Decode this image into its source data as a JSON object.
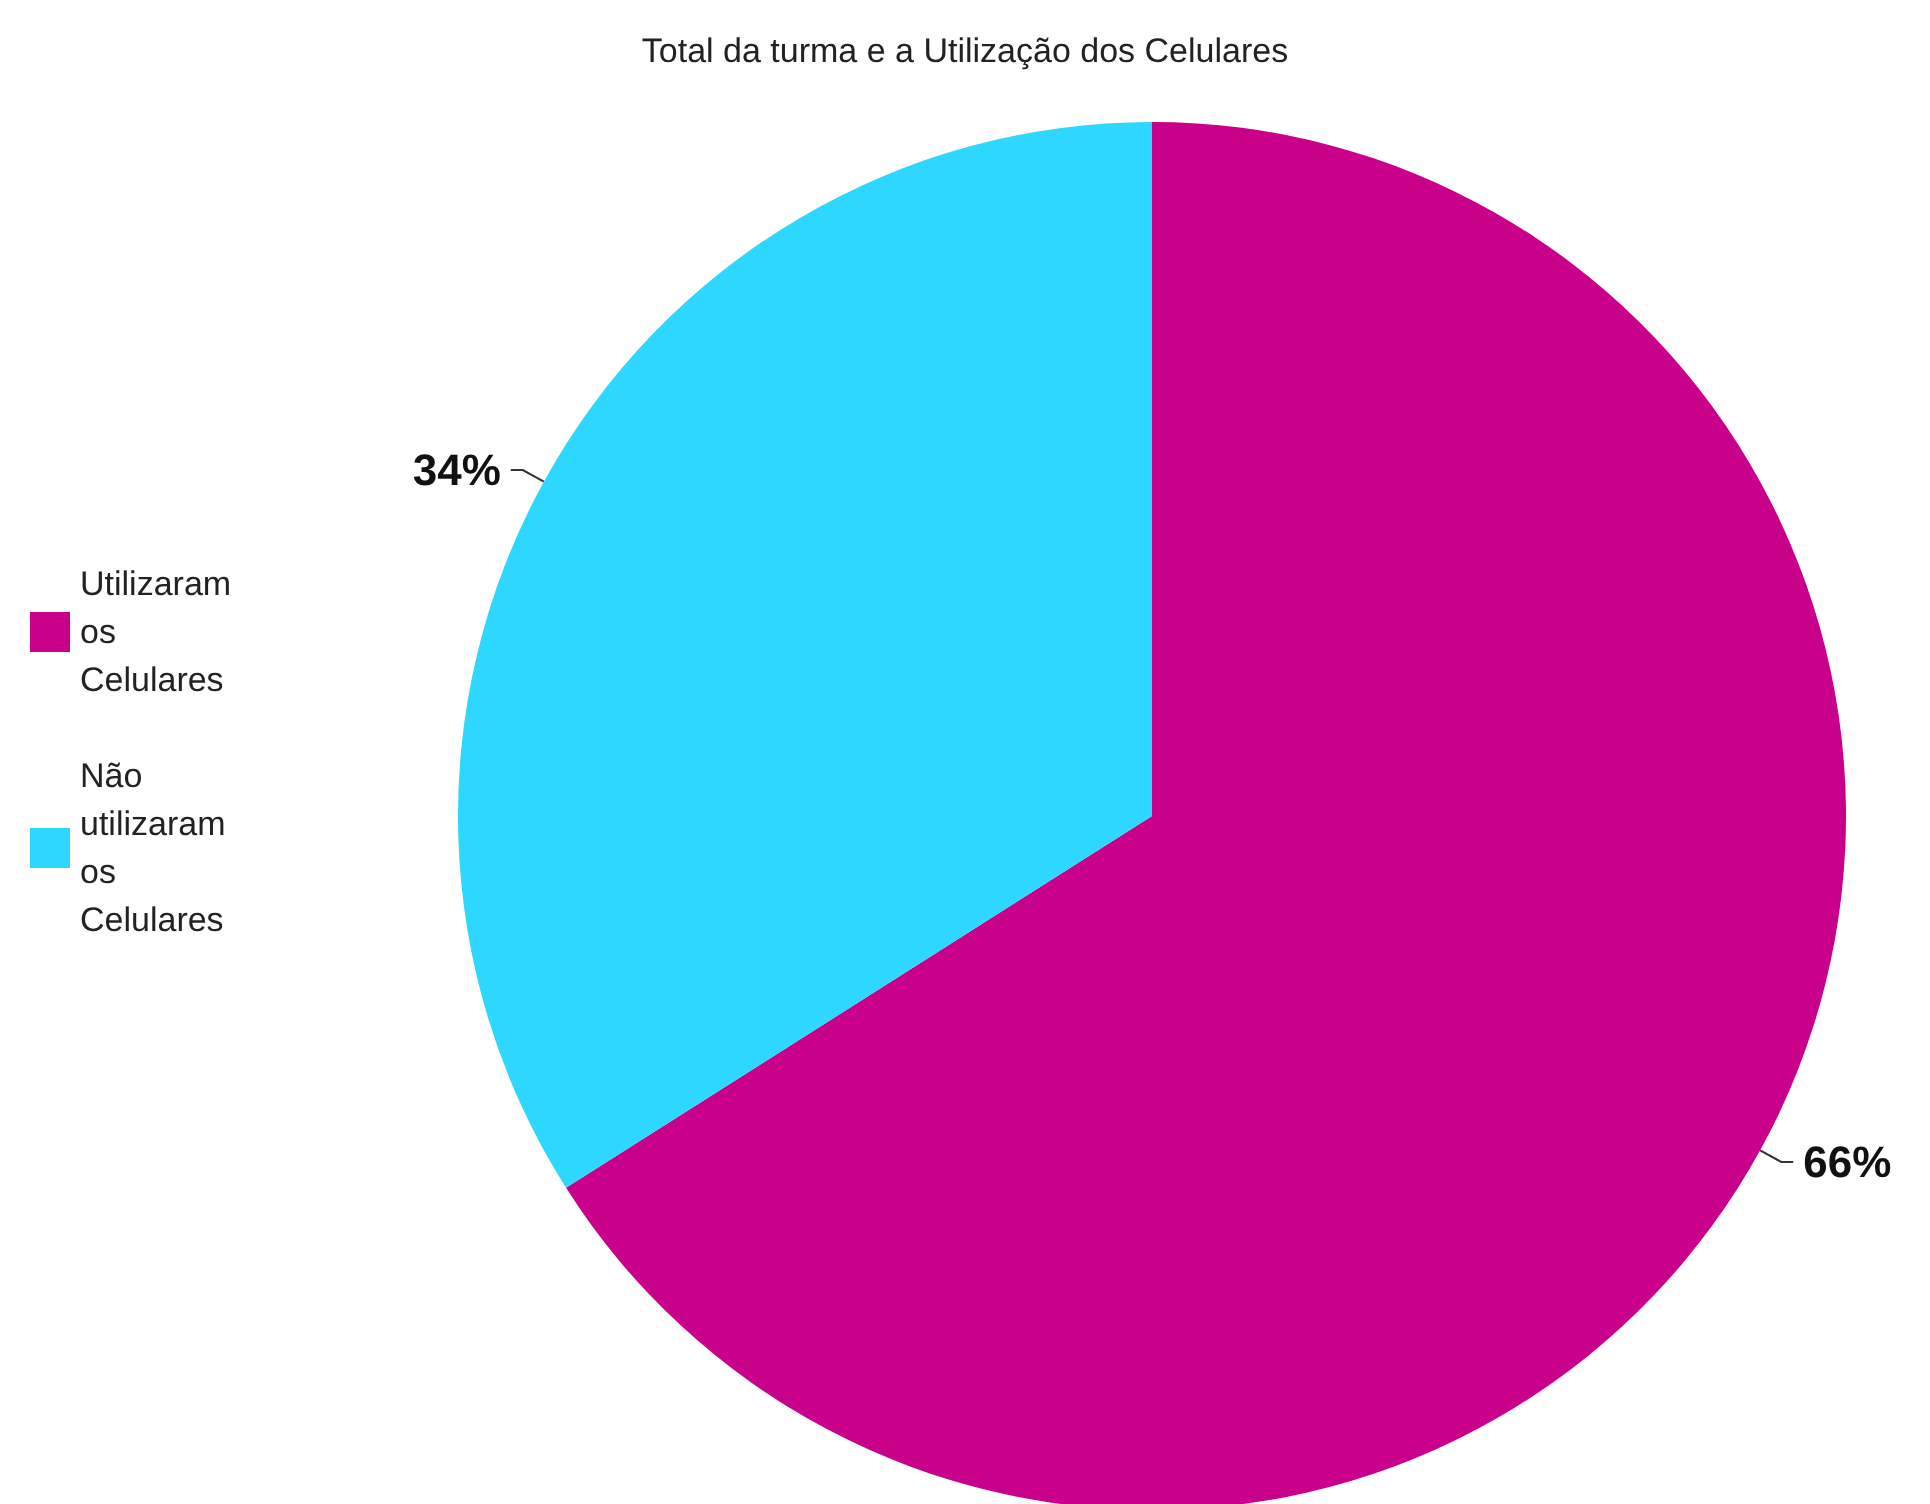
{
  "chart_data": {
    "type": "pie",
    "title": "Total da turma e a Utilização dos Celulares",
    "categories": [
      "Utilizaram os Celulares",
      "Não utilizaram os Celulares"
    ],
    "values": [
      66,
      34
    ],
    "colors": [
      "#c9008a",
      "#2ed7fd"
    ],
    "value_labels": [
      "66%",
      "34%"
    ],
    "legend": "left"
  }
}
